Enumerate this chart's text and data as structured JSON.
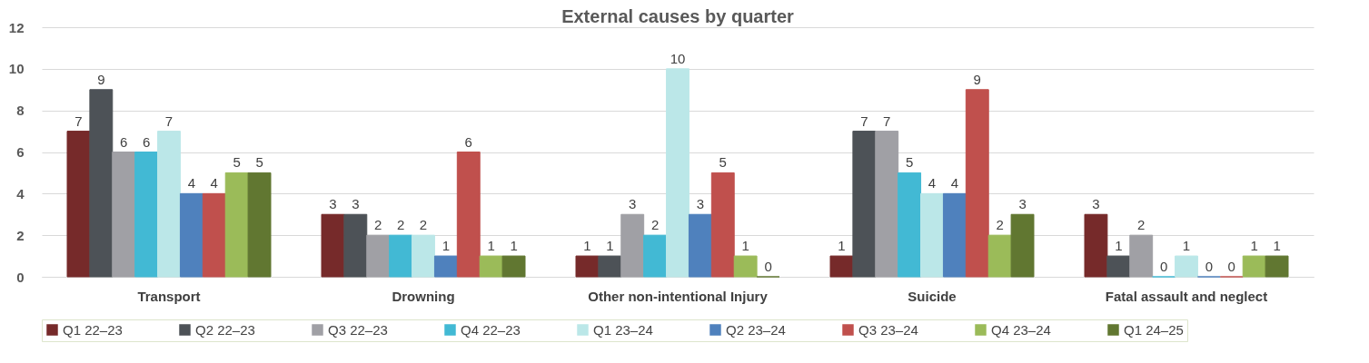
{
  "chart_data": {
    "type": "bar",
    "title": "External causes by quarter",
    "categories": [
      "Transport",
      "Drowning",
      "Other non-intentional Injury",
      "Suicide",
      "Fatal assault and neglect"
    ],
    "series": [
      {
        "name": "Q1 22–23",
        "color": "#762a2a",
        "values": [
          7,
          3,
          1,
          1,
          3
        ]
      },
      {
        "name": "Q2 22–23",
        "color": "#4d5257",
        "values": [
          9,
          3,
          1,
          7,
          1
        ]
      },
      {
        "name": "Q3 22–23",
        "color": "#a0a0a5",
        "values": [
          6,
          2,
          3,
          7,
          2
        ]
      },
      {
        "name": "Q4 22–23",
        "color": "#42b9d4",
        "values": [
          6,
          2,
          2,
          5,
          0
        ]
      },
      {
        "name": "Q1 23–24",
        "color": "#bbe7e8",
        "values": [
          7,
          2,
          10,
          4,
          1
        ]
      },
      {
        "name": "Q2 23–24",
        "color": "#4f81bd",
        "values": [
          4,
          1,
          3,
          4,
          0
        ]
      },
      {
        "name": "Q3 23–24",
        "color": "#c0504d",
        "values": [
          4,
          6,
          5,
          9,
          0
        ]
      },
      {
        "name": "Q4 23–24",
        "color": "#9bbb59",
        "values": [
          5,
          1,
          1,
          2,
          1
        ]
      },
      {
        "name": "Q1 24–25",
        "color": "#617731",
        "values": [
          5,
          1,
          0,
          3,
          1
        ]
      }
    ],
    "ylim": [
      0,
      12
    ],
    "yticks": [
      0,
      2,
      4,
      6,
      8,
      10,
      12
    ],
    "grid": "y",
    "legend": "bottom",
    "data_labels": true
  }
}
